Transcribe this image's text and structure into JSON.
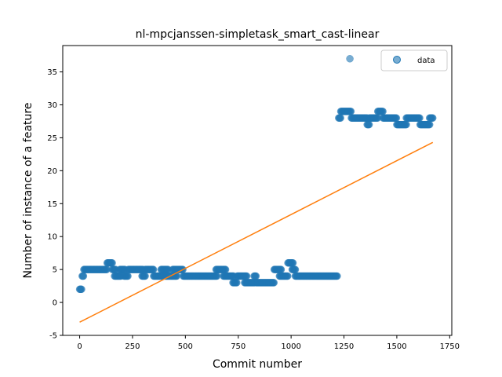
{
  "chart_data": {
    "type": "scatter",
    "title": "nl-mpcjanssen-simpletask_smart_cast-linear",
    "xlabel": "Commit number",
    "ylabel": "Number of instance of a feature",
    "xlim": [
      -80,
      1760
    ],
    "ylim": [
      -5,
      39
    ],
    "xticks": [
      0,
      250,
      500,
      750,
      1000,
      1250,
      1500,
      1750
    ],
    "yticks": [
      -5,
      0,
      5,
      10,
      15,
      20,
      25,
      30,
      35
    ],
    "grid": false,
    "legend": {
      "placement": "top-right",
      "entries": [
        "data"
      ]
    },
    "series": [
      {
        "name": "data",
        "kind": "scatter",
        "color": "#1f77b4",
        "segments": [
          {
            "x_start": 0,
            "x_end": 10,
            "y": 2
          },
          {
            "x_start": 12,
            "x_end": 18,
            "y": 4
          },
          {
            "x_start": 20,
            "x_end": 130,
            "y": 5
          },
          {
            "x_start": 130,
            "x_end": 155,
            "y": 6
          },
          {
            "x_start": 155,
            "x_end": 170,
            "y": 5
          },
          {
            "x_start": 165,
            "x_end": 195,
            "y": 4
          },
          {
            "x_start": 190,
            "x_end": 215,
            "y": 5
          },
          {
            "x_start": 210,
            "x_end": 230,
            "y": 4
          },
          {
            "x_start": 230,
            "x_end": 300,
            "y": 5
          },
          {
            "x_start": 295,
            "x_end": 310,
            "y": 4
          },
          {
            "x_start": 310,
            "x_end": 350,
            "y": 5
          },
          {
            "x_start": 350,
            "x_end": 400,
            "y": 4
          },
          {
            "x_start": 385,
            "x_end": 420,
            "y": 5
          },
          {
            "x_start": 405,
            "x_end": 460,
            "y": 4
          },
          {
            "x_start": 440,
            "x_end": 490,
            "y": 5
          },
          {
            "x_start": 490,
            "x_end": 650,
            "y": 4
          },
          {
            "x_start": 645,
            "x_end": 690,
            "y": 5
          },
          {
            "x_start": 680,
            "x_end": 730,
            "y": 4
          },
          {
            "x_start": 725,
            "x_end": 745,
            "y": 3
          },
          {
            "x_start": 745,
            "x_end": 790,
            "y": 4
          },
          {
            "x_start": 780,
            "x_end": 830,
            "y": 3
          },
          {
            "x_start": 825,
            "x_end": 835,
            "y": 4
          },
          {
            "x_start": 835,
            "x_end": 920,
            "y": 3
          },
          {
            "x_start": 920,
            "x_end": 955,
            "y": 5
          },
          {
            "x_start": 945,
            "x_end": 985,
            "y": 4
          },
          {
            "x_start": 985,
            "x_end": 1010,
            "y": 6
          },
          {
            "x_start": 1005,
            "x_end": 1020,
            "y": 5
          },
          {
            "x_start": 1020,
            "x_end": 1220,
            "y": 4
          },
          {
            "x_start": 1225,
            "x_end": 1235,
            "y": 28
          },
          {
            "x_start": 1235,
            "x_end": 1285,
            "y": 29
          },
          {
            "x_start": 1285,
            "x_end": 1360,
            "y": 28
          },
          {
            "x_start": 1360,
            "x_end": 1370,
            "y": 27
          },
          {
            "x_start": 1370,
            "x_end": 1410,
            "y": 28
          },
          {
            "x_start": 1410,
            "x_end": 1435,
            "y": 29
          },
          {
            "x_start": 1435,
            "x_end": 1500,
            "y": 28
          },
          {
            "x_start": 1500,
            "x_end": 1545,
            "y": 27
          },
          {
            "x_start": 1545,
            "x_end": 1610,
            "y": 28
          },
          {
            "x_start": 1610,
            "x_end": 1655,
            "y": 27
          },
          {
            "x_start": 1655,
            "x_end": 1670,
            "y": 28
          }
        ],
        "points": [
          {
            "x": 1278,
            "y": 37
          }
        ]
      },
      {
        "kind": "line",
        "color": "#ff7f0e",
        "x": [
          0,
          1670
        ],
        "y": [
          -3.0,
          24.3
        ]
      }
    ]
  }
}
